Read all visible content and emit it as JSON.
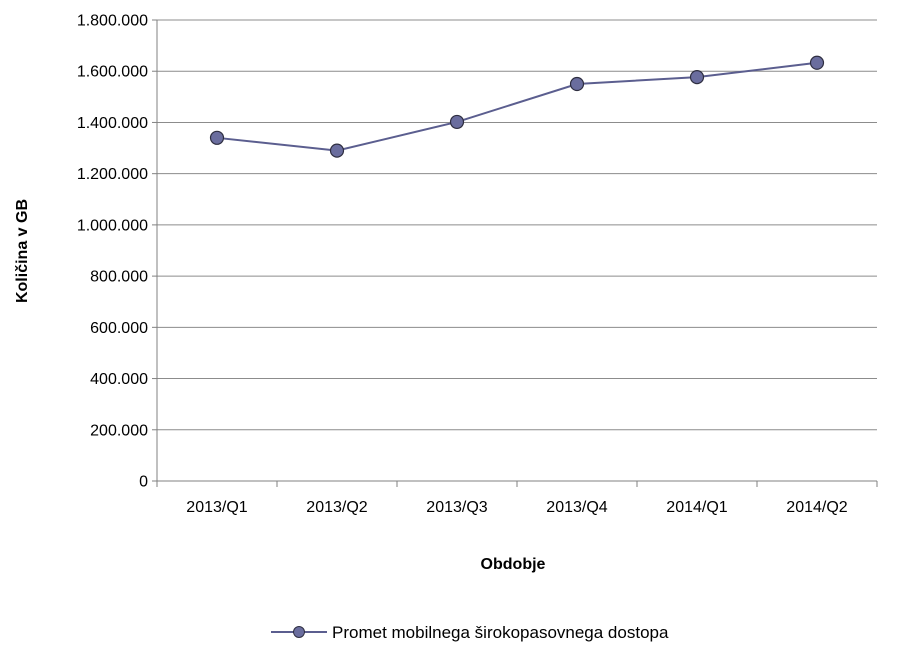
{
  "chart_data": {
    "type": "line",
    "categories": [
      "2013/Q1",
      "2013/Q2",
      "2013/Q3",
      "2013/Q4",
      "2014/Q1",
      "2014/Q2"
    ],
    "series": [
      {
        "name": "Promet mobilnega širokopasovnega dostopa",
        "values": [
          1340000,
          1290000,
          1402000,
          1550000,
          1577000,
          1633000
        ],
        "color": "#5B5E8F",
        "marker_fill": "#6A6D9E"
      }
    ],
    "xlabel": "Obdobje",
    "ylabel": "Količina v GB",
    "ylim": [
      0,
      1800000
    ],
    "yticks": [
      "0",
      "200.000",
      "400.000",
      "600.000",
      "800.000",
      "1.000.000",
      "1.200.000",
      "1.400.000",
      "1.600.000",
      "1.800.000"
    ],
    "grid": true,
    "legend_position": "bottom"
  }
}
